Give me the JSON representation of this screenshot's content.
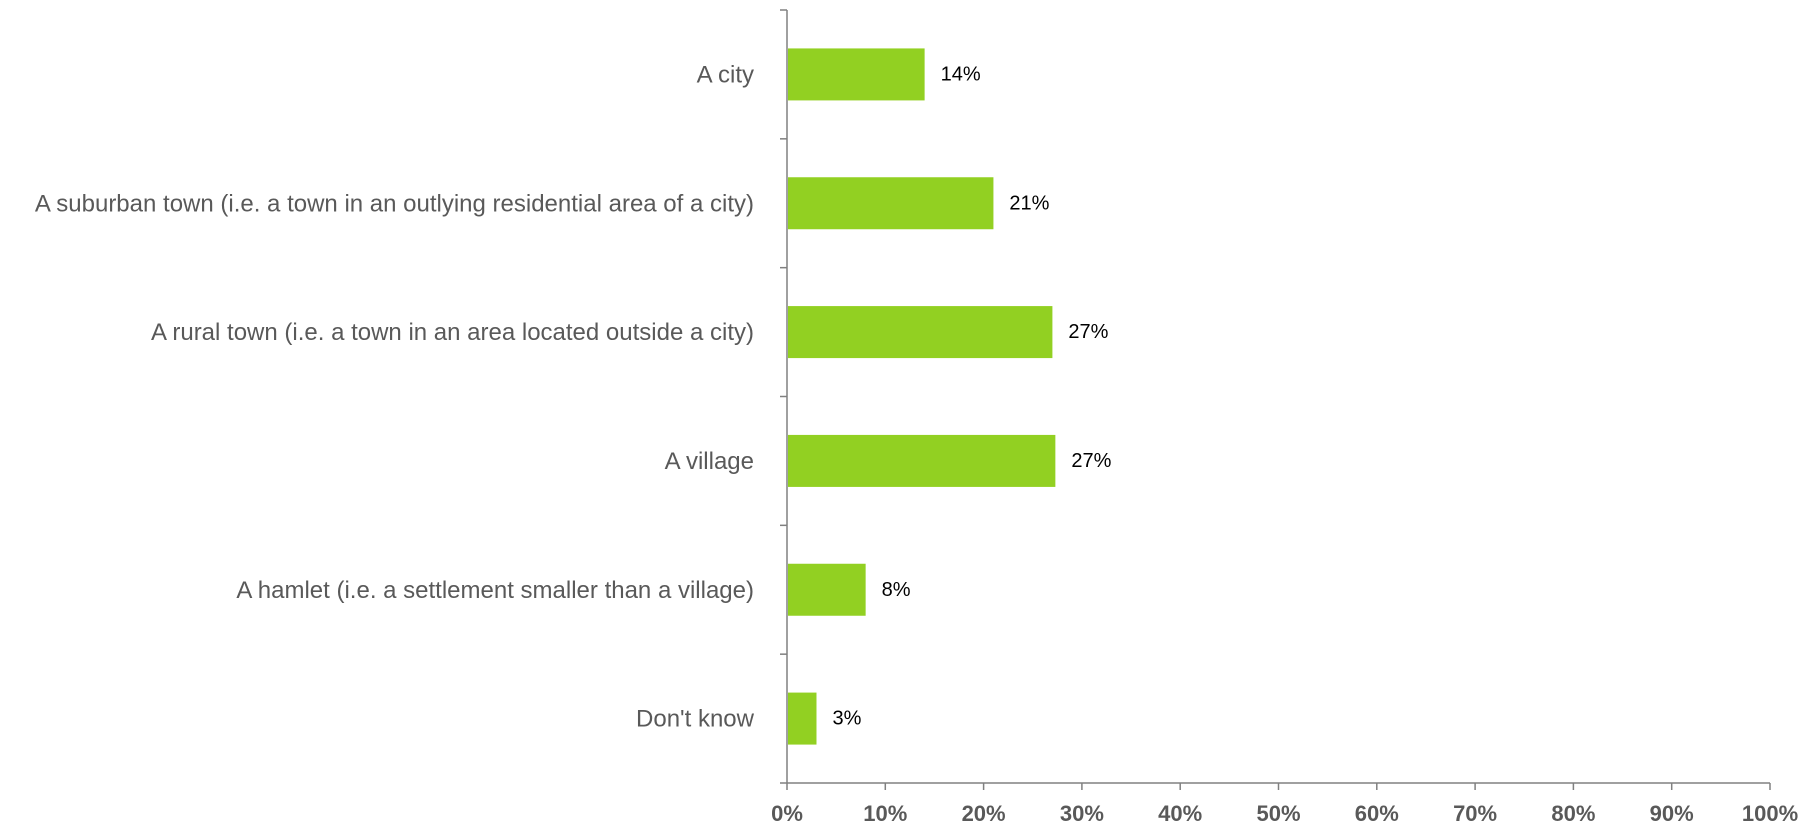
{
  "chart_data": {
    "type": "bar",
    "orientation": "horizontal",
    "categories": [
      "A city",
      "A suburban town (i.e. a town in an outlying residential area of a city)",
      "A rural town (i.e. a town in an area located outside a city)",
      "A village",
      "A hamlet (i.e. a settlement smaller than a village)",
      "Don't know"
    ],
    "values": [
      14,
      21,
      27,
      27.3,
      8,
      3
    ],
    "data_labels": [
      "14%",
      "21%",
      "27%",
      "27%",
      "8%",
      "3%"
    ],
    "xlim": [
      0,
      100
    ],
    "xticks": [
      0,
      10,
      20,
      30,
      40,
      50,
      60,
      70,
      80,
      90,
      100
    ],
    "xtick_labels": [
      "0%",
      "10%",
      "20%",
      "30%",
      "40%",
      "50%",
      "60%",
      "70%",
      "80%",
      "90%",
      "100%"
    ],
    "grid": false,
    "legend": "none",
    "colors": {
      "bar": "#92d022",
      "axis": "#808080",
      "category_text": "#595959",
      "tick_text": "#595959",
      "data_label_text": "#000000"
    }
  }
}
